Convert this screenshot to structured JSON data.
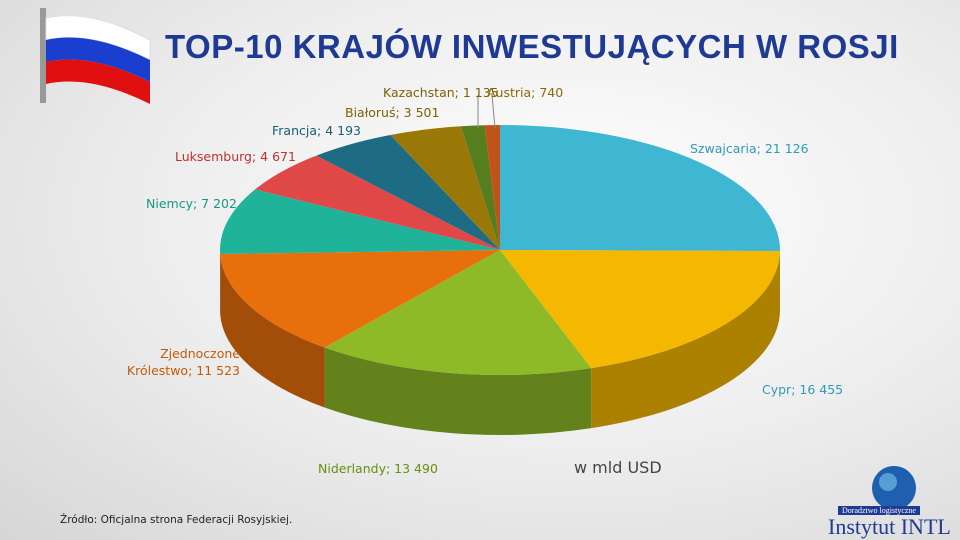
{
  "chart_data": {
    "type": "pie3d",
    "title": "TOP-10 KRAJÓW INWESTUJĄCYCH W ROSJI",
    "unit_note": "w mld USD",
    "values": [
      21126,
      16455,
      13490,
      11523,
      7202,
      4671,
      4193,
      3501,
      1135,
      740
    ],
    "value_labels": [
      "Szwajcaria; 21 126",
      "Cypr; 16 455",
      "Niderlandy; 13 490",
      "Zjednoczone Królestwo; 11 523",
      "Niemcy; 7 202",
      "Luksemburg; 4 671",
      "Francja; 4 193",
      "Białoruś; 3 501",
      "Kazachstan; 1 135",
      "Austria; 740"
    ],
    "colors": [
      "#3fb6d2",
      "#f5b800",
      "#8dba26",
      "#e8700c",
      "#1fb39a",
      "#e04848",
      "#1d6c84",
      "#9a7808",
      "#567d1e",
      "#c0521a"
    ],
    "label_colors": [
      "#2e9bb8",
      "#2e9bb8",
      "#6a8e10",
      "#c55a08",
      "#179985",
      "#c03030",
      "#185e74",
      "#7c6106",
      "#7c6106",
      "#8a6a0a"
    ]
  },
  "source": "Źródło: Oficjalna strona Federacji Rosyjskiej.",
  "logo": {
    "tagline": "Doradztwo logistyczne",
    "name": "Instytut INTL"
  }
}
